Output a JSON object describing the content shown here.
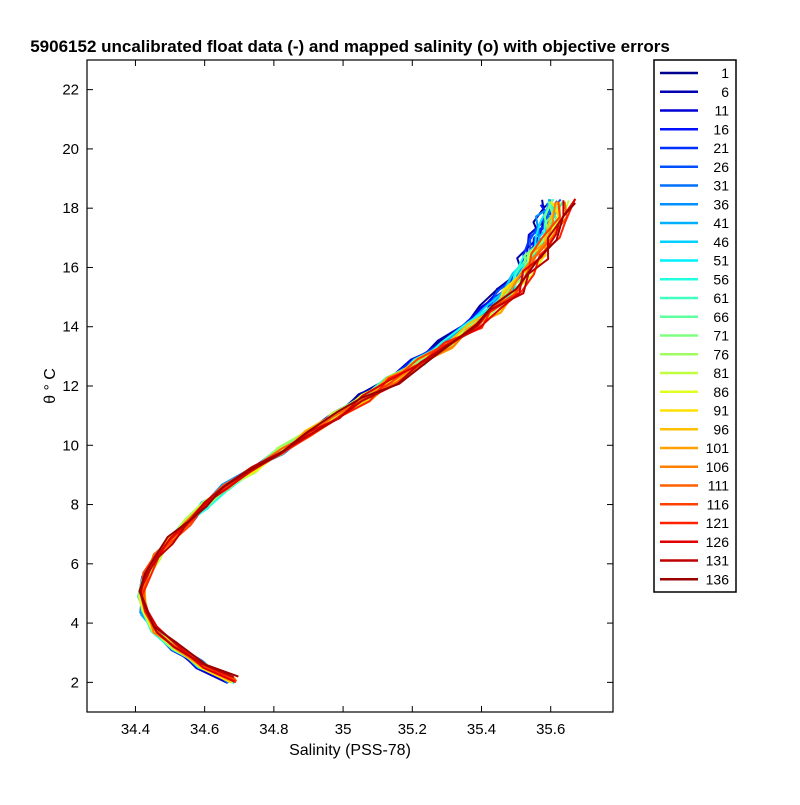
{
  "chart_data": {
    "type": "line",
    "title": "5906152 uncalibrated float data (-) and mapped salinity (o) with objective errors",
    "xlabel": "Salinity (PSS-78)",
    "ylabel": "θ ° C",
    "xlim": [
      34.26,
      35.78
    ],
    "ylim": [
      1,
      23
    ],
    "xticks": [
      34.4,
      34.6,
      34.8,
      35,
      35.2,
      35.4,
      35.6
    ],
    "xtick_labels": [
      "34.4",
      "34.6",
      "34.8",
      "35",
      "35.2",
      "35.4",
      "35.6"
    ],
    "yticks": [
      2,
      4,
      6,
      8,
      10,
      12,
      14,
      16,
      18,
      20,
      22
    ],
    "ytick_labels": [
      "2",
      "4",
      "6",
      "8",
      "10",
      "12",
      "14",
      "16",
      "18",
      "20",
      "22"
    ],
    "grid": false,
    "legend_position": "outside-right",
    "legend": [
      {
        "label": "1",
        "color": "#00008f"
      },
      {
        "label": "6",
        "color": "#0000b0"
      },
      {
        "label": "11",
        "color": "#0000d4"
      },
      {
        "label": "16",
        "color": "#0010ff"
      },
      {
        "label": "21",
        "color": "#0030ff"
      },
      {
        "label": "26",
        "color": "#0050ff"
      },
      {
        "label": "31",
        "color": "#0070ff"
      },
      {
        "label": "36",
        "color": "#0090ff"
      },
      {
        "label": "41",
        "color": "#00b0ff"
      },
      {
        "label": "46",
        "color": "#00d0ff"
      },
      {
        "label": "51",
        "color": "#00f0ff"
      },
      {
        "label": "56",
        "color": "#20ffe0"
      },
      {
        "label": "61",
        "color": "#40ffc0"
      },
      {
        "label": "66",
        "color": "#60ffa0"
      },
      {
        "label": "71",
        "color": "#80ff80"
      },
      {
        "label": "76",
        "color": "#a0ff60"
      },
      {
        "label": "81",
        "color": "#c0ff40"
      },
      {
        "label": "86",
        "color": "#e0ff20"
      },
      {
        "label": "91",
        "color": "#ffe000"
      },
      {
        "label": "96",
        "color": "#ffc000"
      },
      {
        "label": "101",
        "color": "#ffa000"
      },
      {
        "label": "106",
        "color": "#ff8000"
      },
      {
        "label": "111",
        "color": "#ff6000"
      },
      {
        "label": "116",
        "color": "#ff4000"
      },
      {
        "label": "121",
        "color": "#ff2000"
      },
      {
        "label": "126",
        "color": "#e00000"
      },
      {
        "label": "131",
        "color": "#c00000"
      },
      {
        "label": "136",
        "color": "#9a0000"
      }
    ],
    "profile_shape": {
      "theta": [
        2.1,
        2.6,
        3.2,
        3.8,
        4.4,
        5.0,
        5.6,
        6.2,
        6.8,
        7.4,
        8.0,
        8.6,
        9.2,
        9.8,
        10.4,
        11.0,
        11.6,
        12.2,
        12.8,
        13.4,
        14.0,
        14.6,
        15.2,
        15.8,
        16.4,
        17.0,
        17.6,
        18.2
      ],
      "salinity": [
        34.69,
        34.6,
        34.52,
        34.46,
        34.43,
        34.42,
        34.43,
        34.46,
        34.5,
        34.55,
        34.6,
        34.66,
        34.74,
        34.82,
        34.9,
        34.98,
        35.06,
        35.14,
        35.22,
        35.3,
        35.37,
        35.43,
        35.48,
        35.52,
        35.55,
        35.58,
        35.6,
        35.62
      ]
    }
  }
}
